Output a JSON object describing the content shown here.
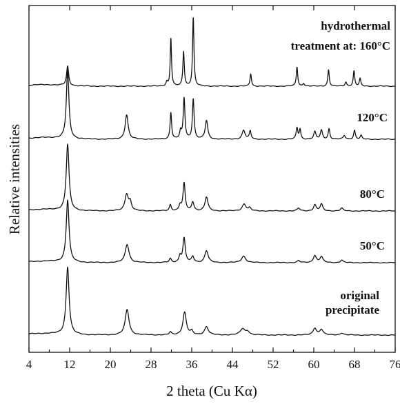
{
  "chart_data": {
    "type": "line",
    "title": "",
    "xlabel": "2 theta (Cu Kα)",
    "ylabel": "Relative intensities",
    "xlim": [
      4,
      76
    ],
    "x_ticks": [
      "4",
      "12",
      "20",
      "28",
      "36",
      "44",
      "52",
      "60",
      "68",
      "76"
    ],
    "y_ticks": [],
    "grid": false,
    "legend": "none",
    "series": [
      {
        "name": "original precipitate",
        "label_lines": [
          "original",
          "precipitate"
        ],
        "baseline": 0,
        "peaks": [
          {
            "x": 11.6,
            "h": 98,
            "w": 0.35
          },
          {
            "x": 23.3,
            "h": 37,
            "w": 0.45
          },
          {
            "x": 31.8,
            "h": 4,
            "w": 0.25
          },
          {
            "x": 34.6,
            "h": 33,
            "w": 0.4
          },
          {
            "x": 36.0,
            "h": 5,
            "w": 0.3
          },
          {
            "x": 38.9,
            "h": 12,
            "w": 0.45
          },
          {
            "x": 46.0,
            "h": 9,
            "w": 0.55
          },
          {
            "x": 47.0,
            "h": 5,
            "w": 0.4
          },
          {
            "x": 60.2,
            "h": 10,
            "w": 0.4
          },
          {
            "x": 61.5,
            "h": 8,
            "w": 0.4
          },
          {
            "x": 65.5,
            "h": 3,
            "w": 0.4
          }
        ]
      },
      {
        "name": "50°C",
        "label_lines": [
          "50°C"
        ],
        "baseline": 0,
        "peaks": [
          {
            "x": 11.6,
            "h": 95,
            "w": 0.33
          },
          {
            "x": 23.3,
            "h": 28,
            "w": 0.45
          },
          {
            "x": 31.8,
            "h": 6,
            "w": 0.25
          },
          {
            "x": 33.7,
            "h": 10,
            "w": 0.25
          },
          {
            "x": 34.5,
            "h": 37,
            "w": 0.28
          },
          {
            "x": 36.2,
            "h": 9,
            "w": 0.3
          },
          {
            "x": 38.9,
            "h": 18,
            "w": 0.4
          },
          {
            "x": 46.2,
            "h": 10,
            "w": 0.5
          },
          {
            "x": 57.0,
            "h": 3,
            "w": 0.3
          },
          {
            "x": 60.2,
            "h": 11,
            "w": 0.35
          },
          {
            "x": 61.5,
            "h": 9,
            "w": 0.35
          },
          {
            "x": 65.5,
            "h": 4,
            "w": 0.3
          }
        ]
      },
      {
        "name": "80°C",
        "label_lines": [
          "80°C"
        ],
        "baseline": 0,
        "peaks": [
          {
            "x": 11.6,
            "h": 96,
            "w": 0.33
          },
          {
            "x": 23.2,
            "h": 24,
            "w": 0.4
          },
          {
            "x": 23.9,
            "h": 12,
            "w": 0.3
          },
          {
            "x": 31.8,
            "h": 9,
            "w": 0.22
          },
          {
            "x": 33.7,
            "h": 8,
            "w": 0.25
          },
          {
            "x": 34.5,
            "h": 40,
            "w": 0.25
          },
          {
            "x": 36.2,
            "h": 13,
            "w": 0.28
          },
          {
            "x": 38.9,
            "h": 20,
            "w": 0.35
          },
          {
            "x": 46.3,
            "h": 10,
            "w": 0.45
          },
          {
            "x": 47.4,
            "h": 4,
            "w": 0.3
          },
          {
            "x": 57.0,
            "h": 4,
            "w": 0.3
          },
          {
            "x": 60.2,
            "h": 9,
            "w": 0.3
          },
          {
            "x": 61.5,
            "h": 10,
            "w": 0.3
          },
          {
            "x": 65.5,
            "h": 4,
            "w": 0.3
          }
        ]
      },
      {
        "name": "120°C",
        "label_lines": [
          "120°C"
        ],
        "baseline": 0,
        "peaks": [
          {
            "x": 11.6,
            "h": 92,
            "w": 0.3
          },
          {
            "x": 23.2,
            "h": 33,
            "w": 0.35
          },
          {
            "x": 31.9,
            "h": 36,
            "w": 0.18
          },
          {
            "x": 33.8,
            "h": 10,
            "w": 0.2
          },
          {
            "x": 34.5,
            "h": 55,
            "w": 0.2
          },
          {
            "x": 36.3,
            "h": 54,
            "w": 0.2
          },
          {
            "x": 38.9,
            "h": 25,
            "w": 0.3
          },
          {
            "x": 46.2,
            "h": 12,
            "w": 0.35
          },
          {
            "x": 47.5,
            "h": 11,
            "w": 0.2
          },
          {
            "x": 56.7,
            "h": 15,
            "w": 0.2
          },
          {
            "x": 57.3,
            "h": 13,
            "w": 0.18
          },
          {
            "x": 60.2,
            "h": 10,
            "w": 0.25
          },
          {
            "x": 61.5,
            "h": 12,
            "w": 0.25
          },
          {
            "x": 63.0,
            "h": 14,
            "w": 0.2
          },
          {
            "x": 66.0,
            "h": 5,
            "w": 0.25
          },
          {
            "x": 68.0,
            "h": 12,
            "w": 0.2
          },
          {
            "x": 69.3,
            "h": 5,
            "w": 0.2
          }
        ]
      },
      {
        "name": "160°C",
        "label_lines": [
          "hydrothermal",
          "treatment at: 160°C"
        ],
        "baseline": 0,
        "peaks": [
          {
            "x": 11.6,
            "h": 28,
            "w": 0.25
          },
          {
            "x": 31.1,
            "h": 6,
            "w": 0.2
          },
          {
            "x": 31.9,
            "h": 70,
            "w": 0.15
          },
          {
            "x": 34.4,
            "h": 50,
            "w": 0.17
          },
          {
            "x": 36.3,
            "h": 100,
            "w": 0.16
          },
          {
            "x": 47.6,
            "h": 18,
            "w": 0.17
          },
          {
            "x": 56.7,
            "h": 28,
            "w": 0.17
          },
          {
            "x": 58.0,
            "h": 4,
            "w": 0.2
          },
          {
            "x": 62.9,
            "h": 24,
            "w": 0.17
          },
          {
            "x": 66.3,
            "h": 6,
            "w": 0.2
          },
          {
            "x": 67.9,
            "h": 22,
            "w": 0.17
          },
          {
            "x": 69.1,
            "h": 11,
            "w": 0.17
          }
        ]
      }
    ]
  }
}
